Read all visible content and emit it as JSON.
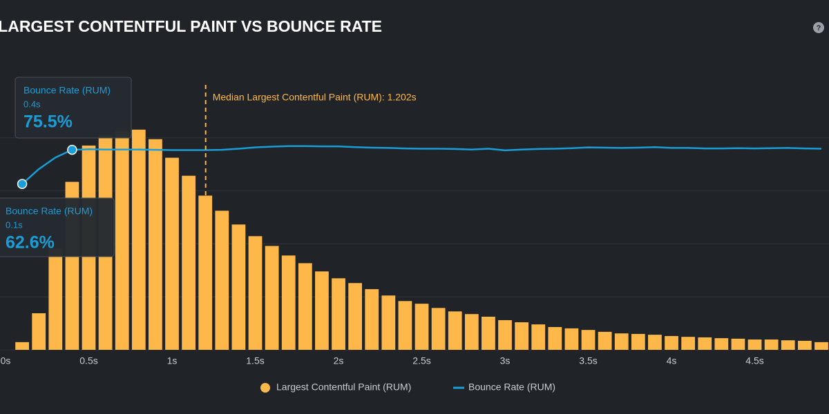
{
  "chart_data": {
    "type": "combo",
    "title": "LARGEST CONTENTFUL PAINT VS BOUNCE RATE",
    "help_icon": "?",
    "x": [
      0.1,
      0.2,
      0.3,
      0.4,
      0.5,
      0.6,
      0.7,
      0.8,
      0.9,
      1.0,
      1.1,
      1.2,
      1.3,
      1.4,
      1.5,
      1.6,
      1.7,
      1.8,
      1.9,
      2.0,
      2.1,
      2.2,
      2.3,
      2.4,
      2.5,
      2.6,
      2.7,
      2.8,
      2.9,
      3.0,
      3.1,
      3.2,
      3.3,
      3.4,
      3.5,
      3.6,
      3.7,
      3.8,
      3.9,
      4.0,
      4.1,
      4.2,
      4.3,
      4.4,
      4.5,
      4.6,
      4.7,
      4.8,
      4.9
    ],
    "series": [
      {
        "name": "Largest Contentful Paint (RUM)",
        "type": "bar",
        "color": "#fdb849",
        "values": [
          2.9,
          13.8,
          38.2,
          63.4,
          77.1,
          81.0,
          82.5,
          83.1,
          79.5,
          72.5,
          65.7,
          58.2,
          52.5,
          47.3,
          42.9,
          39.2,
          35.6,
          32.7,
          29.6,
          27.0,
          25.2,
          22.9,
          20.5,
          18.4,
          17.4,
          15.8,
          14.5,
          13.5,
          12.5,
          11.2,
          10.4,
          9.6,
          8.6,
          8.1,
          7.5,
          6.8,
          6.2,
          6.0,
          5.7,
          5.2,
          4.9,
          4.7,
          4.4,
          4.2,
          3.9,
          3.9,
          3.6,
          3.4,
          2.9
        ]
      },
      {
        "name": "Bounce Rate (RUM)",
        "type": "line",
        "color": "#1a9ed8",
        "values": [
          62.6,
          68.2,
          72.6,
          75.5,
          75.7,
          75.6,
          75.6,
          75.6,
          75.5,
          75.4,
          75.4,
          75.4,
          75.5,
          75.9,
          76.4,
          76.7,
          76.9,
          76.9,
          76.8,
          76.8,
          76.5,
          76.3,
          76.2,
          76.0,
          75.9,
          75.9,
          75.8,
          75.6,
          75.9,
          75.3,
          75.6,
          75.8,
          75.9,
          76.1,
          76.4,
          76.3,
          76.2,
          76.3,
          76.5,
          76.2,
          76.2,
          76.0,
          76.0,
          76.1,
          76.0,
          76.1,
          76.2,
          76.0,
          75.9
        ]
      }
    ],
    "xlim": [
      0,
      4.95
    ],
    "xticks": [
      {
        "value": 0,
        "label": "0s"
      },
      {
        "value": 0.5,
        "label": "0.5s"
      },
      {
        "value": 1,
        "label": "1s"
      },
      {
        "value": 1.5,
        "label": "1.5s"
      },
      {
        "value": 2,
        "label": "2s"
      },
      {
        "value": 2.5,
        "label": "2.5s"
      },
      {
        "value": 3,
        "label": "3s"
      },
      {
        "value": 3.5,
        "label": "3.5s"
      },
      {
        "value": 4,
        "label": "4s"
      },
      {
        "value": 4.5,
        "label": "4.5s"
      }
    ],
    "ylim": [
      0,
      100
    ],
    "yticks": [
      0,
      20,
      40,
      60,
      80
    ],
    "grid": true,
    "median": {
      "value": 1.202,
      "label": "Median Largest Contentful Paint (RUM): 1.202s",
      "color": "#fdb849"
    },
    "tooltips": [
      {
        "title": "Bounce Rate (RUM)",
        "x": 0.4,
        "x_label": "0.4s",
        "value": 75.5,
        "value_label": "75.5%"
      },
      {
        "title": "Bounce Rate (RUM)",
        "x": 0.1,
        "x_label": "0.1s",
        "value": 62.6,
        "value_label": "62.6%"
      }
    ]
  }
}
